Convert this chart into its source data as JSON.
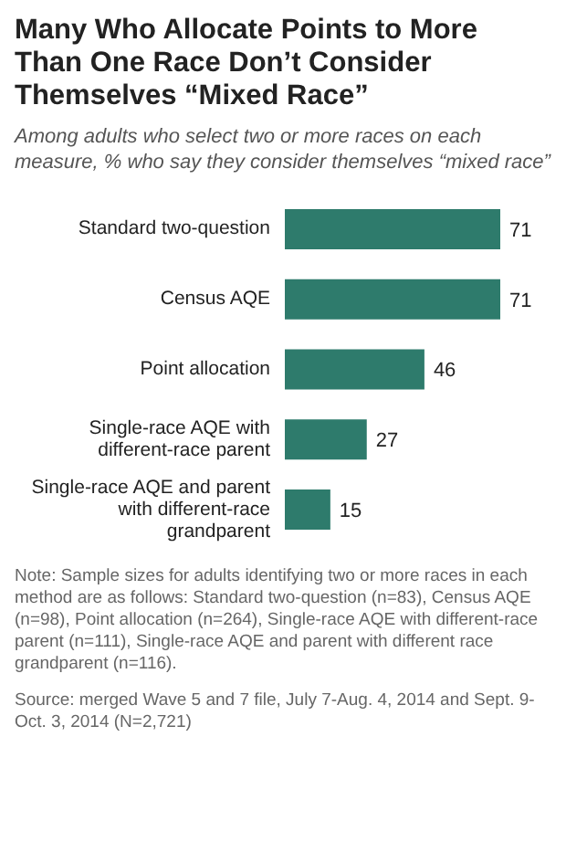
{
  "chart_data": {
    "type": "bar",
    "orientation": "horizontal",
    "title": "Many Who Allocate Points to More Than One Race Don’t Consider Themselves “Mixed Race”",
    "subtitle": "Among adults who select two or more races on each measure, % who say they consider themselves “mixed race”",
    "categories": [
      "Standard two-question",
      "Census AQE",
      "Point allocation",
      "Single-race AQE with different-race parent",
      "Single-race AQE and parent with different-race grandparent"
    ],
    "values": [
      71,
      71,
      46,
      27,
      15
    ],
    "color": "#2e7b6c",
    "data_labels": true,
    "annotations": [
      "Note: Sample sizes for adults identifying two or more races in each method are as follows: Standard two-question (n=83), Census AQE (n=98), Point allocation (n=264), Single-race AQE with different-race parent (n=111), Single-race AQE and parent with different race grandparent (n=116).",
      "Source: merged Wave 5 and 7 file, July 7-Aug. 4, 2014 and Sept. 9-Oct. 3, 2014 (N=2,721)"
    ]
  }
}
